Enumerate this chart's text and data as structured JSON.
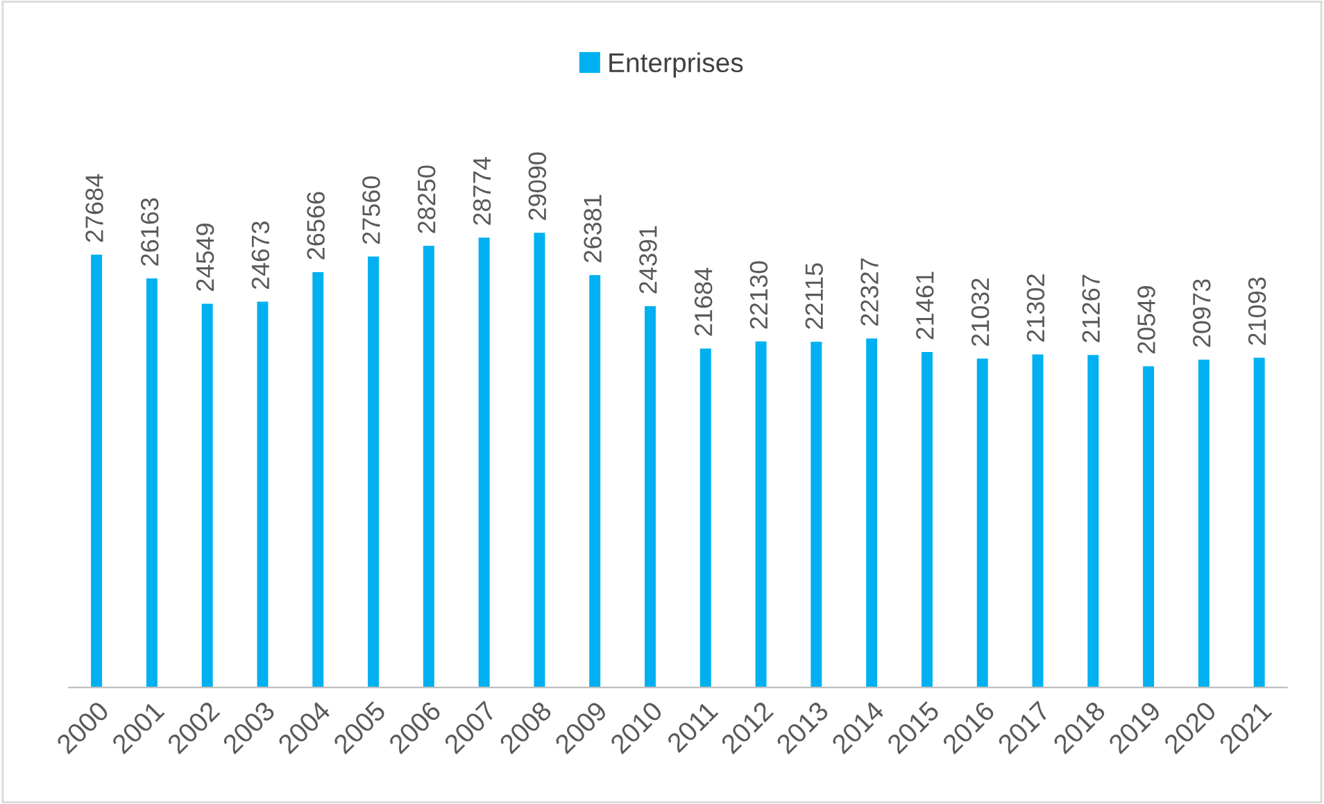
{
  "chart_data": {
    "type": "bar",
    "categories": [
      "2000",
      "2001",
      "2002",
      "2003",
      "2004",
      "2005",
      "2006",
      "2007",
      "2008",
      "2009",
      "2010",
      "2011",
      "2012",
      "2013",
      "2014",
      "2015",
      "2016",
      "2017",
      "2018",
      "2019",
      "2020",
      "2021"
    ],
    "series": [
      {
        "name": "Enterprises",
        "color": "#00b0f0",
        "values": [
          27684,
          26163,
          24549,
          24673,
          26566,
          27560,
          28250,
          28774,
          29090,
          26381,
          24391,
          21684,
          22130,
          22115,
          22327,
          21461,
          21032,
          21302,
          21267,
          20549,
          20973,
          21093
        ]
      }
    ],
    "data_labels": true,
    "legend": "top",
    "grid": false
  }
}
